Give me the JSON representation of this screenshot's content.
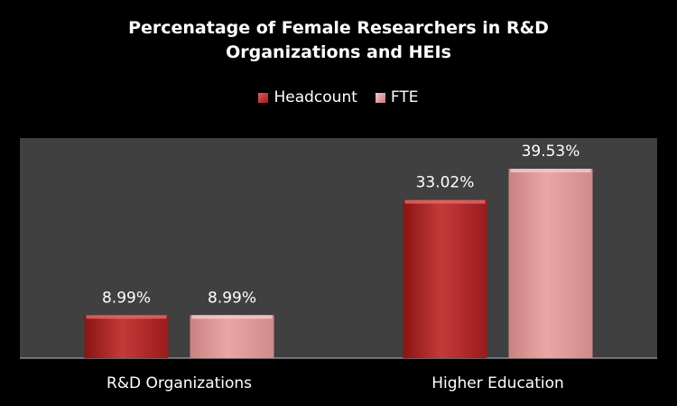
{
  "chart_data": {
    "type": "bar",
    "title_line1": "Percenatage of Female Researchers in R&D",
    "title_line2": "Organizations and HEIs",
    "categories": [
      "R&D Organizations",
      "Higher Education"
    ],
    "series": [
      {
        "name": "Headcount",
        "values": [
          8.99,
          33.02
        ],
        "labels": [
          "8.99%",
          "33.02%"
        ],
        "color": "#c0302e"
      },
      {
        "name": "FTE",
        "values": [
          8.99,
          39.53
        ],
        "labels": [
          "8.99%",
          "39.53%"
        ],
        "color": "#e8a0a0"
      }
    ],
    "ylim": [
      0,
      45
    ],
    "legend_position": "top",
    "grid": false
  }
}
